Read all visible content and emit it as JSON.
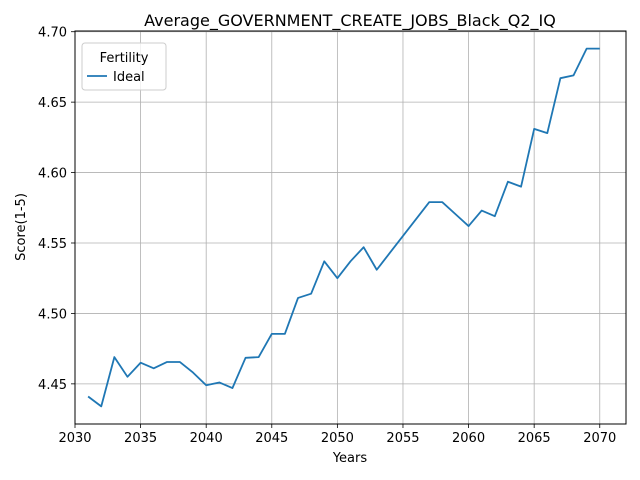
{
  "chart_data": {
    "type": "line",
    "title": "Average_GOVERNMENT_CREATE_JOBS_Black_Q2_IQ",
    "xlabel": "Years",
    "ylabel": "Score(1-5)",
    "xlim": [
      2030,
      2072
    ],
    "ylim": [
      4.4215,
      4.7005
    ],
    "xticks": [
      2030,
      2035,
      2040,
      2045,
      2050,
      2055,
      2060,
      2065,
      2070
    ],
    "yticks": [
      4.45,
      4.5,
      4.55,
      4.6,
      4.65,
      4.7
    ],
    "ytick_labels": [
      "4.45",
      "4.50",
      "4.55",
      "4.60",
      "4.65",
      "4.70"
    ],
    "grid": true,
    "legend": {
      "title": "Fertility",
      "placement": "top-left"
    },
    "series": [
      {
        "name": "Ideal",
        "color": "#1f77b4",
        "x": [
          2031,
          2032,
          2033,
          2034,
          2035,
          2036,
          2037,
          2038,
          2039,
          2040,
          2041,
          2042,
          2043,
          2044,
          2045,
          2046,
          2047,
          2048,
          2049,
          2050,
          2051,
          2052,
          2053,
          2054,
          2055,
          2056,
          2057,
          2058,
          2059,
          2060,
          2061,
          2062,
          2063,
          2064,
          2065,
          2066,
          2067,
          2068,
          2069,
          2070
        ],
        "y": [
          4.441,
          4.434,
          4.469,
          4.455,
          4.465,
          4.461,
          4.4655,
          4.4655,
          4.458,
          4.449,
          4.451,
          4.447,
          4.4685,
          4.469,
          4.4855,
          4.4855,
          4.511,
          4.514,
          4.537,
          4.525,
          4.537,
          4.547,
          4.531,
          4.543,
          4.555,
          4.567,
          4.579,
          4.579,
          4.5705,
          4.562,
          4.573,
          4.569,
          4.5935,
          4.59,
          4.631,
          4.628,
          4.667,
          4.669,
          4.688,
          4.688
        ]
      }
    ]
  }
}
